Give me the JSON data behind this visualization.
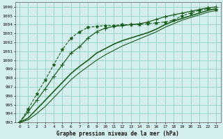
{
  "title": "Graphe pression niveau de la mer (hPa)",
  "bg_color": "#d5eeee",
  "grid_color": "#88ccbb",
  "line_color": "#1a5c1a",
  "xlim": [
    -0.5,
    23.5
  ],
  "ylim": [
    993,
    1006.5
  ],
  "xticks": [
    0,
    1,
    2,
    3,
    4,
    5,
    6,
    7,
    8,
    9,
    10,
    11,
    12,
    13,
    14,
    15,
    16,
    17,
    18,
    19,
    20,
    21,
    22,
    23
  ],
  "yticks": [
    993,
    994,
    995,
    996,
    997,
    998,
    999,
    1000,
    1001,
    1002,
    1003,
    1004,
    1005,
    1006
  ],
  "series": [
    {
      "x": [
        0,
        1,
        2,
        3,
        4,
        5,
        6,
        7,
        8,
        9,
        10,
        11,
        12,
        13,
        14,
        15,
        16,
        17,
        18,
        19,
        20,
        21,
        22,
        23
      ],
      "y": [
        993.0,
        994.5,
        996.2,
        997.8,
        999.5,
        1001.2,
        1002.5,
        1003.2,
        1003.7,
        1003.8,
        1003.9,
        1003.9,
        1004.0,
        1004.0,
        1004.0,
        1004.1,
        1004.2,
        1004.3,
        1004.5,
        1005.0,
        1005.3,
        1005.6,
        1005.8,
        1005.7
      ],
      "marker": "*",
      "linestyle": "--",
      "linewidth": 0.8,
      "markersize": 3.5
    },
    {
      "x": [
        0,
        1,
        2,
        3,
        4,
        5,
        6,
        7,
        8,
        9,
        10,
        11,
        12,
        13,
        14,
        15,
        16,
        17,
        18,
        19,
        20,
        21,
        22,
        23
      ],
      "y": [
        993.0,
        994.2,
        995.5,
        996.8,
        998.2,
        999.5,
        1000.8,
        1001.5,
        1002.5,
        1003.2,
        1003.6,
        1003.8,
        1003.9,
        1004.0,
        1004.1,
        1004.3,
        1004.6,
        1004.9,
        1005.1,
        1005.3,
        1005.5,
        1005.7,
        1005.9,
        1006.0
      ],
      "marker": "+",
      "linestyle": "-",
      "linewidth": 0.9,
      "markersize": 4.0
    },
    {
      "x": [
        0,
        1,
        2,
        3,
        4,
        5,
        6,
        7,
        8,
        9,
        10,
        11,
        12,
        13,
        14,
        15,
        16,
        17,
        18,
        19,
        20,
        21,
        22,
        23
      ],
      "y": [
        993.0,
        993.5,
        994.5,
        995.5,
        996.5,
        997.5,
        998.5,
        999.3,
        1000.0,
        1000.8,
        1001.3,
        1001.8,
        1002.2,
        1002.5,
        1002.8,
        1003.1,
        1003.5,
        1004.0,
        1004.4,
        1004.7,
        1005.0,
        1005.3,
        1005.6,
        1005.8
      ],
      "marker": "None",
      "linestyle": "-",
      "linewidth": 1.2,
      "markersize": 0
    },
    {
      "x": [
        0,
        1,
        2,
        3,
        4,
        5,
        6,
        7,
        8,
        9,
        10,
        11,
        12,
        13,
        14,
        15,
        16,
        17,
        18,
        19,
        20,
        21,
        22,
        23
      ],
      "y": [
        993.0,
        993.3,
        994.0,
        994.8,
        995.8,
        996.8,
        997.8,
        998.6,
        999.3,
        1000.0,
        1000.6,
        1001.1,
        1001.6,
        1002.0,
        1002.4,
        1002.8,
        1003.2,
        1003.7,
        1004.1,
        1004.5,
        1004.8,
        1005.1,
        1005.4,
        1005.6
      ],
      "marker": "None",
      "linestyle": "-",
      "linewidth": 0.8,
      "markersize": 0
    }
  ]
}
